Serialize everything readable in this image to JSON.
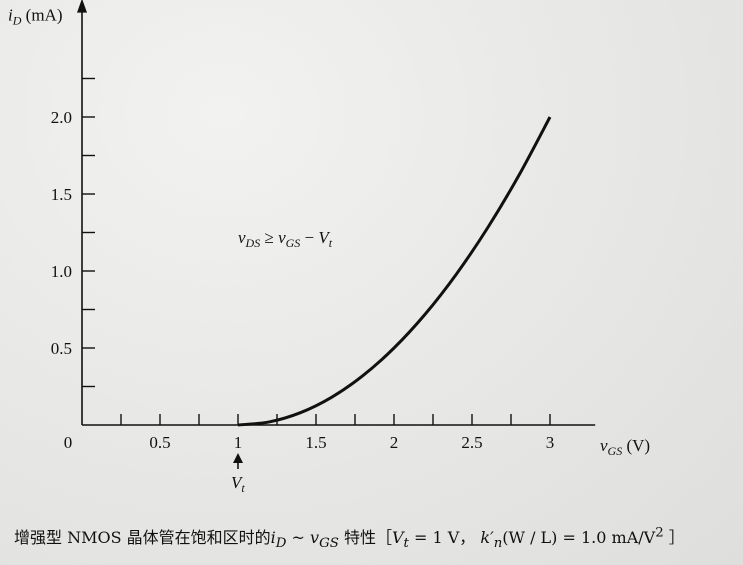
{
  "chart_data": {
    "type": "line",
    "y_axis_label": "i",
    "y_axis_label_sub": "D",
    "y_axis_unit": "(mA)",
    "x_axis_label": "v",
    "x_axis_label_sub": "GS",
    "x_axis_unit": "(V)",
    "x_range": [
      0,
      3.2
    ],
    "y_range": [
      0,
      2.6
    ],
    "x_ticks": [
      0.5,
      1,
      1.5,
      2,
      2.5,
      3
    ],
    "x_tick_labels": [
      "0.5",
      "1",
      "1.5",
      "2",
      "2.5",
      "3"
    ],
    "x_minor_ticks": [
      0.25,
      0.75,
      1.25,
      1.75,
      2.25,
      2.75
    ],
    "y_ticks": [
      0.5,
      1.0,
      1.5,
      2.0
    ],
    "y_tick_labels": [
      "0.5",
      "1.0",
      "1.5",
      "2.0"
    ],
    "y_minor_ticks": [
      0.25,
      0.75,
      1.25,
      1.75,
      2.25
    ],
    "origin_label": "0",
    "series": [
      {
        "x": [
          1.0,
          1.2,
          1.4,
          1.6,
          1.8,
          2.0,
          2.2,
          2.4,
          2.6,
          2.8,
          3.0
        ],
        "y": [
          0.0,
          0.02,
          0.08,
          0.18,
          0.32,
          0.5,
          0.72,
          0.98,
          1.28,
          1.62,
          2.0
        ]
      }
    ],
    "grid": false,
    "annotations": {
      "condition": "v_DS ≥ v_GS − V_t",
      "threshold_marker": "V_t"
    }
  },
  "caption": {
    "prefix": "增强型 NMOS 晶体管在饱和区时的",
    "var_iD": "i",
    "var_iD_sub": "D",
    "tilde": " ~ ",
    "var_vGS": "v",
    "var_vGS_sub": "GS",
    "mid": " 特性［",
    "params": "V",
    "params_sub": "t",
    "params_rest": " = 1 V，",
    "k_part": " k′",
    "k_sub": "n",
    "k_rest": "(W / L) = 1.0 mA/V",
    "k_exp": "2",
    "suffix": " ］"
  }
}
